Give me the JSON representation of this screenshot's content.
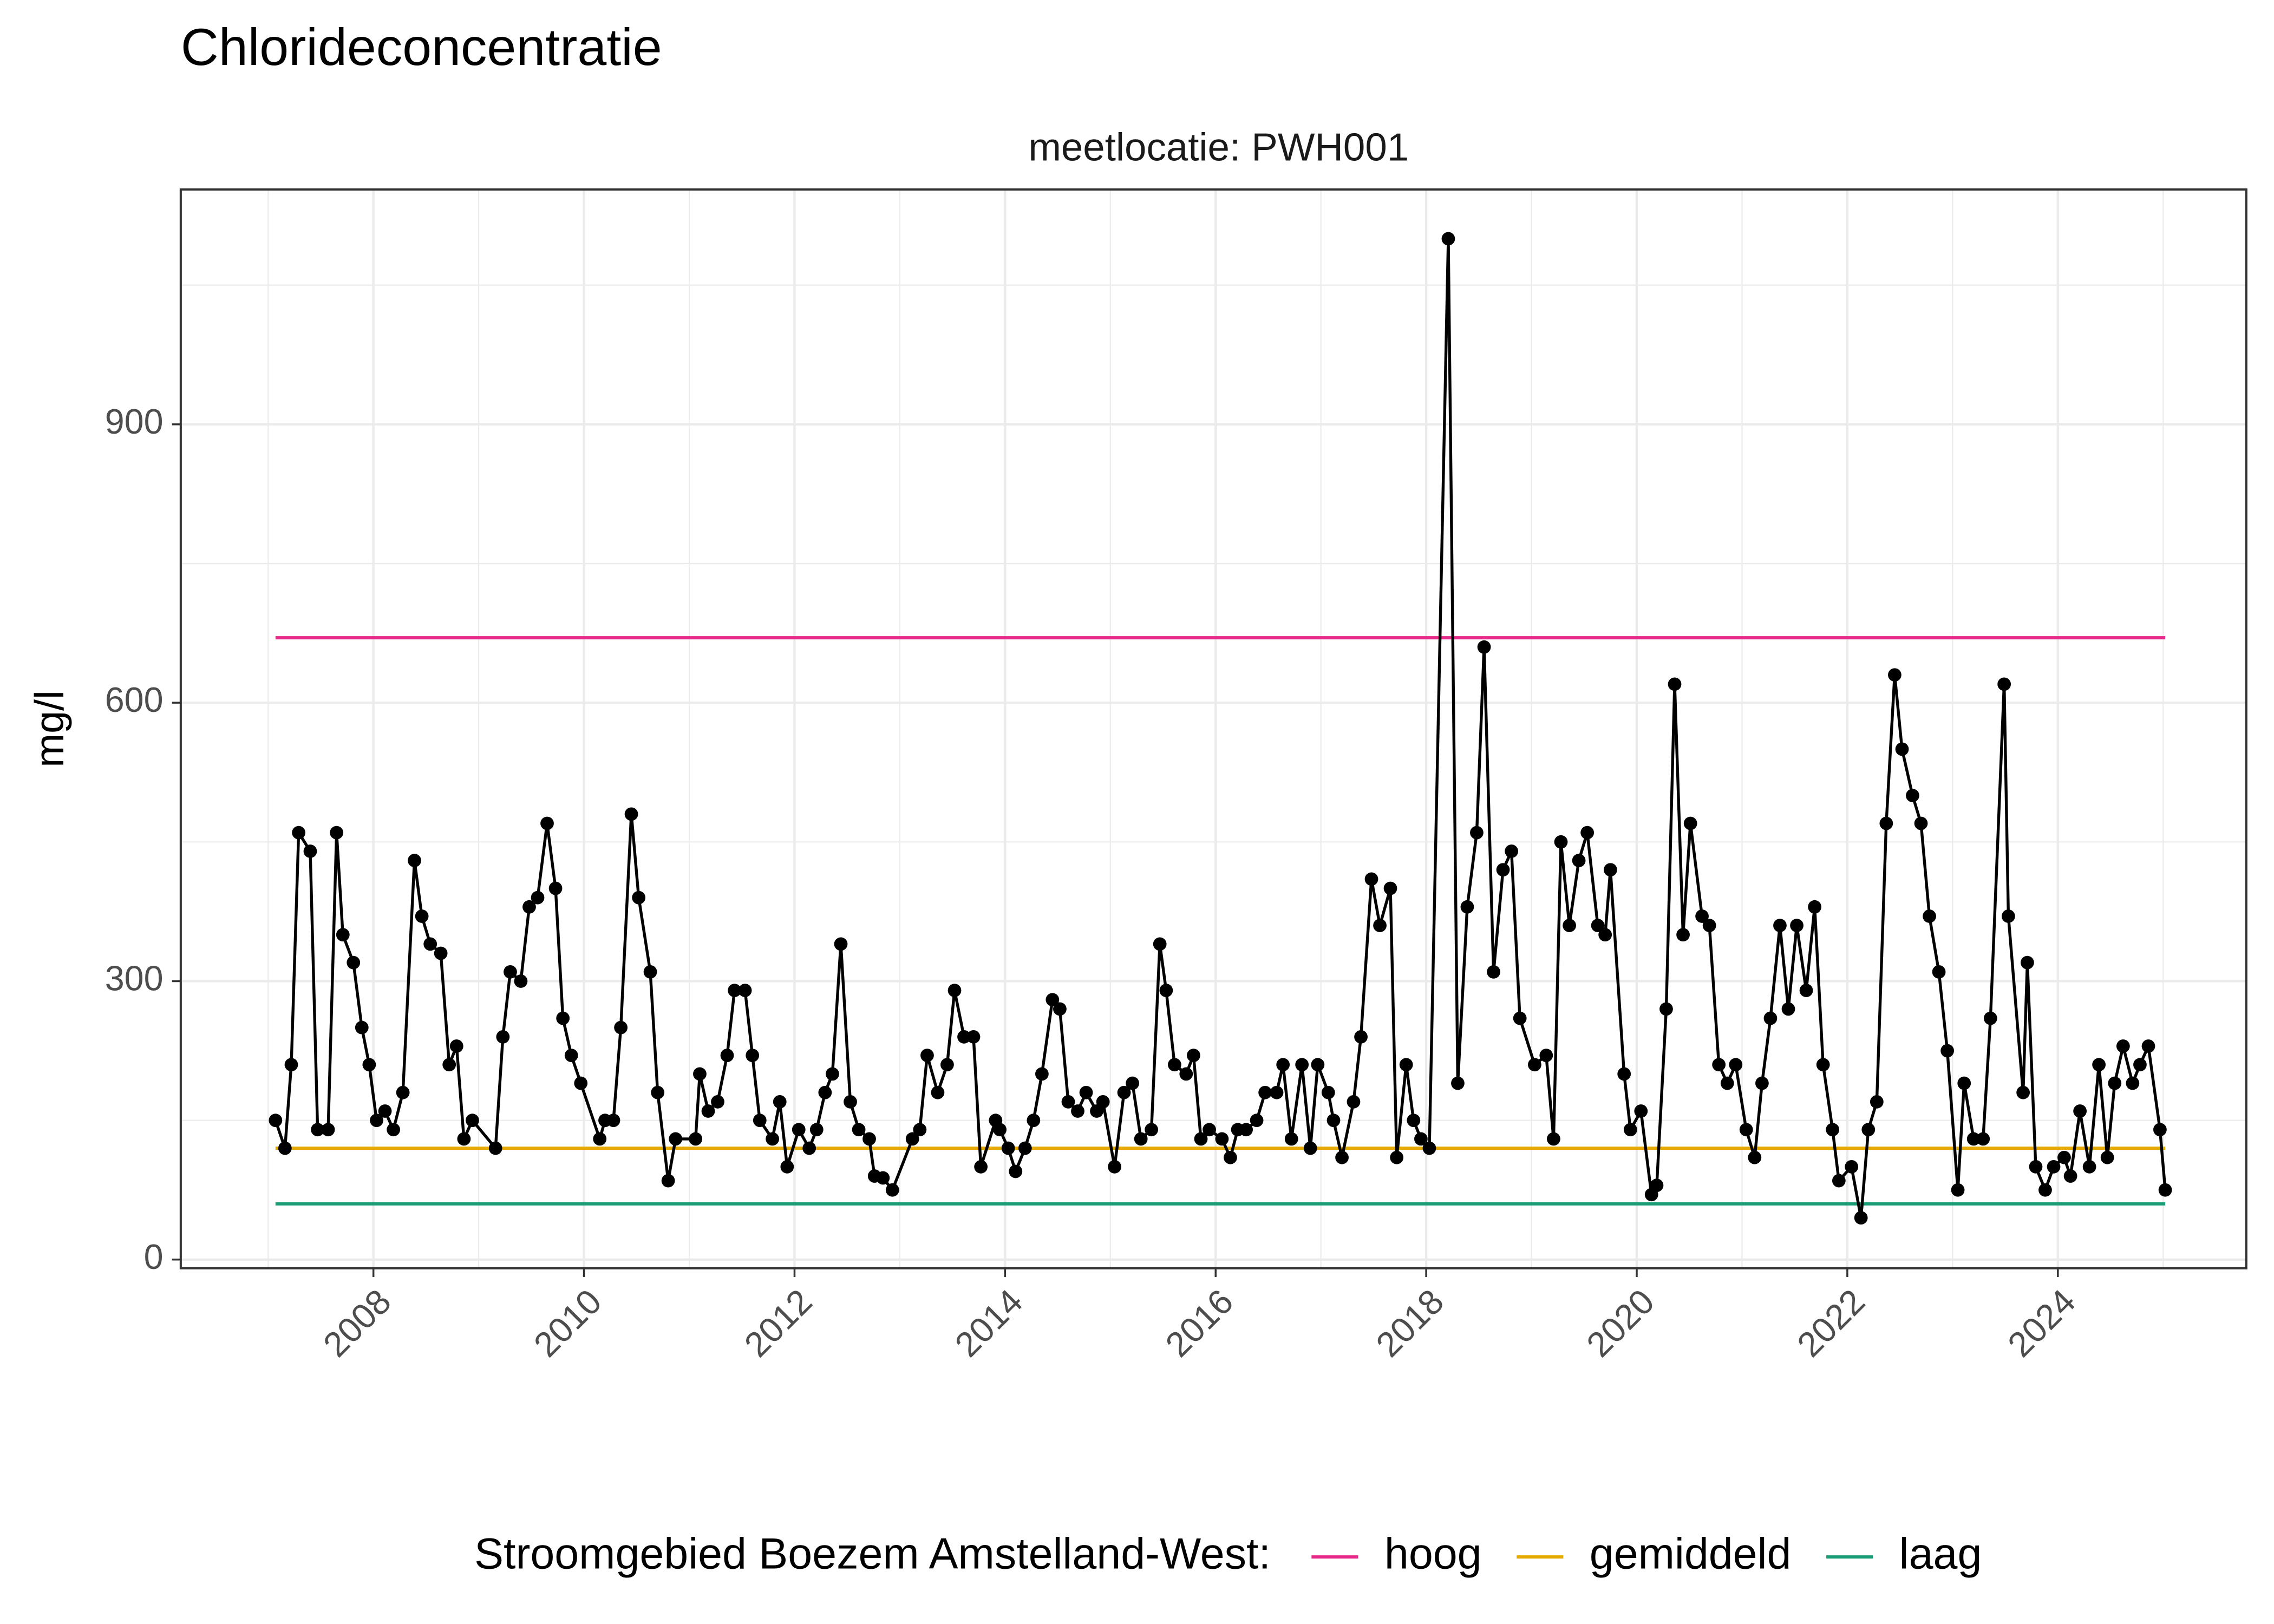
{
  "chart_data": {
    "type": "line",
    "title": "Chlorideconcentratie",
    "subtitle": "meetlocatie: PWH001",
    "y_label": "mg/l",
    "color": "#000000",
    "x": [
      2007.07,
      2007.16,
      2007.22,
      2007.29,
      2007.4,
      2007.47,
      2007.57,
      2007.65,
      2007.71,
      2007.81,
      2007.89,
      2007.96,
      2008.03,
      2008.11,
      2008.19,
      2008.28,
      2008.39,
      2008.46,
      2008.54,
      2008.64,
      2008.72,
      2008.79,
      2008.86,
      2008.94,
      2009.16,
      2009.23,
      2009.3,
      2009.4,
      2009.48,
      2009.56,
      2009.65,
      2009.73,
      2009.8,
      2009.88,
      2009.97,
      2010.15,
      2010.2,
      2010.28,
      2010.35,
      2010.45,
      2010.52,
      2010.63,
      2010.7,
      2010.8,
      2010.87,
      2011.06,
      2011.1,
      2011.18,
      2011.27,
      2011.36,
      2011.43,
      2011.53,
      2011.6,
      2011.67,
      2011.79,
      2011.86,
      2011.93,
      2012.04,
      2012.14,
      2012.21,
      2012.29,
      2012.36,
      2012.44,
      2012.53,
      2012.61,
      2012.71,
      2012.76,
      2012.84,
      2012.93,
      2013.12,
      2013.19,
      2013.26,
      2013.36,
      2013.45,
      2013.52,
      2013.61,
      2013.7,
      2013.77,
      2013.91,
      2013.95,
      2014.03,
      2014.1,
      2014.19,
      2014.27,
      2014.35,
      2014.45,
      2014.52,
      2014.6,
      2014.69,
      2014.77,
      2014.87,
      2014.93,
      2015.04,
      2015.13,
      2015.21,
      2015.29,
      2015.39,
      2015.47,
      2015.53,
      2015.61,
      2015.72,
      2015.79,
      2015.86,
      2015.94,
      2016.06,
      2016.14,
      2016.21,
      2016.29,
      2016.39,
      2016.47,
      2016.58,
      2016.64,
      2016.72,
      2016.82,
      2016.9,
      2016.97,
      2017.07,
      2017.12,
      2017.2,
      2017.31,
      2017.38,
      2017.48,
      2017.56,
      2017.66,
      2017.72,
      2017.81,
      2017.88,
      2017.95,
      2018.03,
      2018.21,
      2018.3,
      2018.39,
      2018.48,
      2018.55,
      2018.64,
      2018.73,
      2018.81,
      2018.89,
      2019.03,
      2019.14,
      2019.21,
      2019.28,
      2019.36,
      2019.45,
      2019.53,
      2019.63,
      2019.7,
      2019.75,
      2019.88,
      2019.94,
      2020.04,
      2020.14,
      2020.19,
      2020.28,
      2020.36,
      2020.44,
      2020.51,
      2020.62,
      2020.69,
      2020.78,
      2020.86,
      2020.94,
      2021.04,
      2021.12,
      2021.19,
      2021.27,
      2021.36,
      2021.44,
      2021.52,
      2021.61,
      2021.69,
      2021.77,
      2021.86,
      2021.92,
      2022.04,
      2022.13,
      2022.2,
      2022.28,
      2022.37,
      2022.45,
      2022.52,
      2022.62,
      2022.7,
      2022.78,
      2022.87,
      2022.95,
      2023.05,
      2023.11,
      2023.2,
      2023.29,
      2023.36,
      2023.49,
      2023.53,
      2023.67,
      2023.71,
      2023.79,
      2023.88,
      2023.96,
      2024.06,
      2024.12,
      2024.21,
      2024.3,
      2024.39,
      2024.47,
      2024.54,
      2024.62,
      2024.71,
      2024.78,
      2024.86,
      2024.97,
      2025.02
    ],
    "values": [
      150,
      120,
      210,
      460,
      440,
      140,
      140,
      460,
      350,
      320,
      250,
      210,
      150,
      160,
      140,
      180,
      430,
      370,
      340,
      330,
      210,
      230,
      130,
      150,
      120,
      240,
      310,
      300,
      380,
      390,
      470,
      400,
      260,
      220,
      190,
      130,
      150,
      150,
      250,
      480,
      390,
      310,
      180,
      85,
      130,
      130,
      200,
      160,
      170,
      220,
      290,
      290,
      220,
      150,
      130,
      170,
      100,
      140,
      120,
      140,
      180,
      200,
      340,
      170,
      140,
      130,
      90,
      88,
      75,
      130,
      140,
      220,
      180,
      210,
      290,
      240,
      240,
      100,
      150,
      140,
      120,
      95,
      120,
      150,
      200,
      280,
      270,
      170,
      160,
      180,
      160,
      170,
      100,
      180,
      190,
      130,
      140,
      340,
      290,
      210,
      200,
      220,
      130,
      140,
      130,
      110,
      140,
      140,
      150,
      180,
      180,
      210,
      130,
      210,
      120,
      210,
      180,
      150,
      110,
      170,
      240,
      410,
      360,
      400,
      110,
      210,
      150,
      130,
      120,
      1100,
      190,
      380,
      460,
      660,
      310,
      420,
      440,
      260,
      210,
      220,
      130,
      450,
      360,
      430,
      460,
      360,
      350,
      420,
      200,
      140,
      160,
      70,
      80,
      270,
      620,
      350,
      470,
      370,
      360,
      210,
      190,
      210,
      140,
      110,
      190,
      260,
      360,
      270,
      360,
      290,
      380,
      210,
      140,
      85,
      100,
      45,
      140,
      170,
      470,
      630,
      550,
      500,
      470,
      370,
      310,
      225,
      75,
      190,
      130,
      130,
      260,
      620,
      370,
      180,
      320,
      100,
      75,
      100,
      110,
      90,
      160,
      100,
      210,
      110,
      190,
      230,
      190,
      210,
      230,
      140,
      75
    ],
    "reference_lines": [
      {
        "name": "hoog",
        "color": "#e7298a",
        "value": 670
      },
      {
        "name": "gemiddeld",
        "color": "#e6ab02",
        "value": 120
      },
      {
        "name": "laag",
        "color": "#1b9e77",
        "value": 60
      }
    ],
    "legend_title": "Stroomgebied Boezem Amstelland-West:",
    "legend_position": "bottom",
    "xlim": [
      2006.17,
      2025.79
    ],
    "xticks": [
      2008,
      2010,
      2012,
      2014,
      2016,
      2018,
      2020,
      2022,
      2024
    ],
    "ylim": [
      -9.4,
      1153
    ],
    "yticks": [
      0,
      300,
      600,
      900
    ],
    "grid": true
  }
}
